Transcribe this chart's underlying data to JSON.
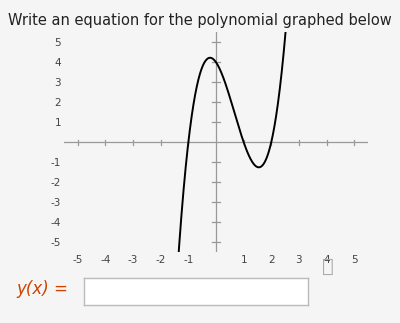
{
  "title": "Write an equation for the polynomial graphed below",
  "title_fontsize": 10.5,
  "title_color": "#222222",
  "xlim": [
    -5.5,
    5.5
  ],
  "ylim": [
    -5.5,
    5.5
  ],
  "xticks": [
    -5,
    -4,
    -3,
    -2,
    -1,
    1,
    2,
    3,
    4,
    5
  ],
  "yticks": [
    -5,
    -4,
    -3,
    -2,
    -1,
    1,
    2,
    3,
    4,
    5
  ],
  "curve_color": "#000000",
  "curve_linewidth": 1.4,
  "axis_color": "#999999",
  "background_color": "#f5f5f5",
  "ylabel_text": "y(x) =",
  "ylabel_fontsize": 12,
  "ylabel_color": "#cc4400",
  "poly_roots": [
    -1,
    1,
    2
  ],
  "poly_scale": 2.0,
  "search_icon_color": "#aaaaaa",
  "tick_fontsize": 7.5,
  "tick_color": "#444444"
}
